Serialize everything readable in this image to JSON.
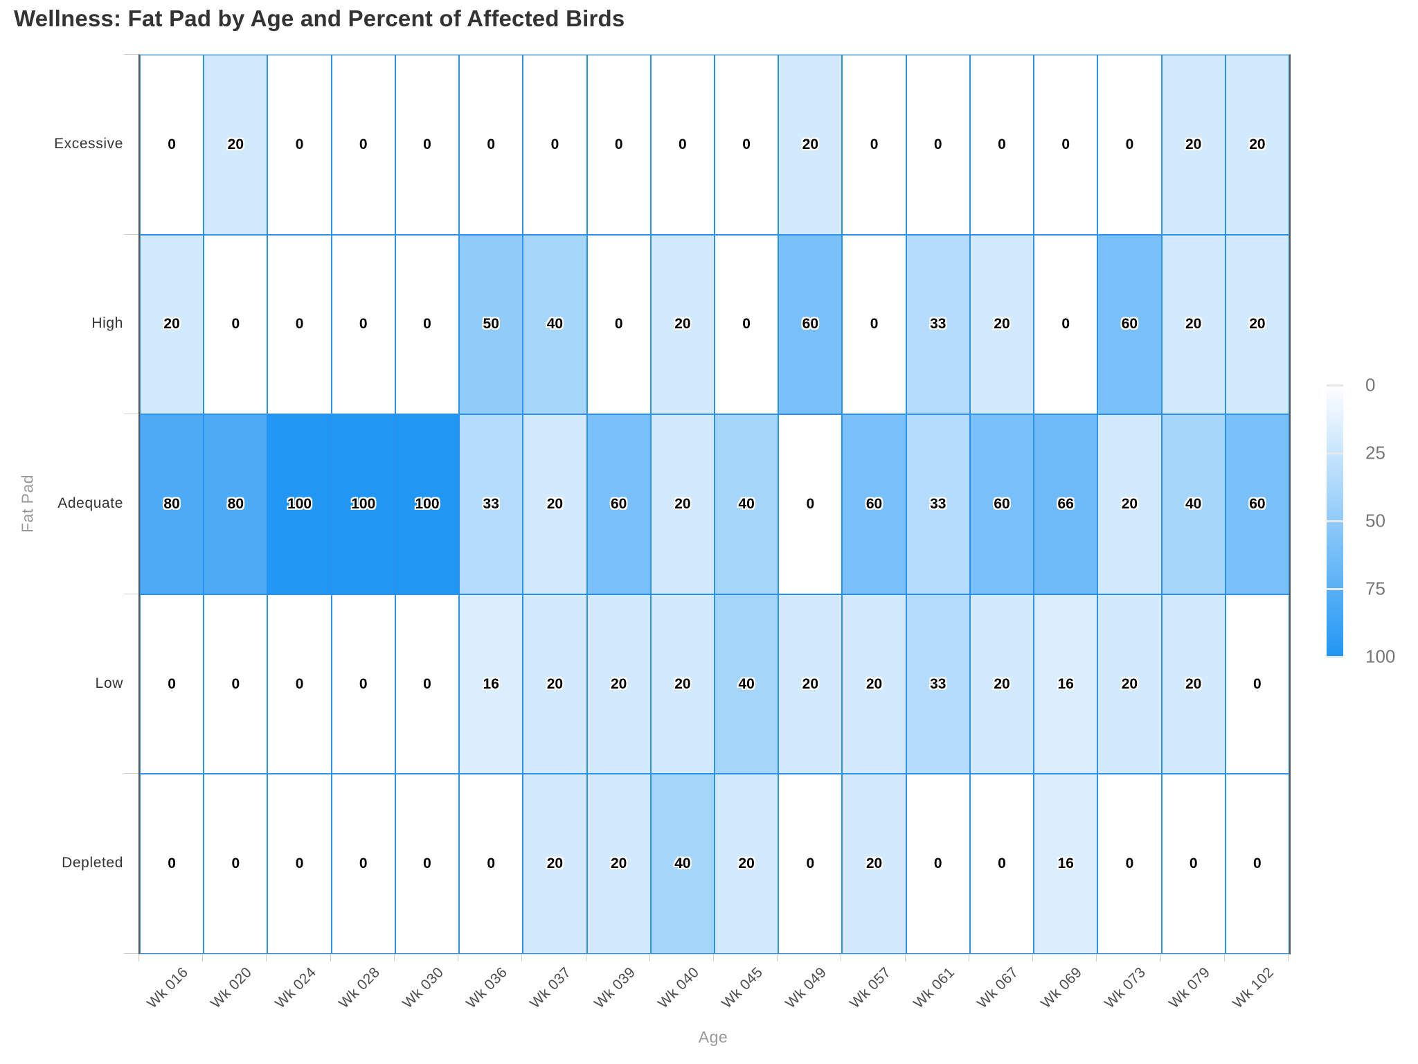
{
  "title": "Wellness: Fat Pad by Age and Percent of Affected Birds",
  "chart_data": {
    "type": "heatmap",
    "title": "Wellness: Fat Pad by Age and Percent of Affected Birds",
    "xlabel": "Age",
    "ylabel": "Fat Pad",
    "x_categories": [
      "Wk 016",
      "Wk 020",
      "Wk 024",
      "Wk 028",
      "Wk 030",
      "Wk 036",
      "Wk 037",
      "Wk 039",
      "Wk 040",
      "Wk 045",
      "Wk 049",
      "Wk 057",
      "Wk 061",
      "Wk 067",
      "Wk 069",
      "Wk 073",
      "Wk 079",
      "Wk 102"
    ],
    "y_categories": [
      "Excessive",
      "High",
      "Adequate",
      "Low",
      "Depleted"
    ],
    "values": [
      [
        0,
        20,
        0,
        0,
        0,
        0,
        0,
        0,
        0,
        0,
        20,
        0,
        0,
        0,
        0,
        0,
        20,
        20
      ],
      [
        20,
        0,
        0,
        0,
        0,
        50,
        40,
        0,
        20,
        0,
        60,
        0,
        33,
        20,
        0,
        60,
        20,
        20
      ],
      [
        80,
        80,
        100,
        100,
        100,
        33,
        20,
        60,
        20,
        40,
        0,
        60,
        33,
        60,
        66,
        20,
        40,
        60
      ],
      [
        0,
        0,
        0,
        0,
        0,
        16,
        20,
        20,
        20,
        40,
        20,
        20,
        33,
        20,
        16,
        20,
        20,
        0
      ],
      [
        0,
        0,
        0,
        0,
        0,
        0,
        20,
        20,
        40,
        20,
        0,
        20,
        0,
        0,
        16,
        0,
        0,
        0
      ]
    ],
    "colorscale": {
      "min": 0,
      "max": 100,
      "min_color": "#ffffff",
      "max_color": "#2196f3"
    },
    "legend": {
      "position": "right",
      "ticks": [
        0,
        25,
        50,
        75,
        100
      ]
    },
    "grid_line_color": "#2a91ee"
  }
}
